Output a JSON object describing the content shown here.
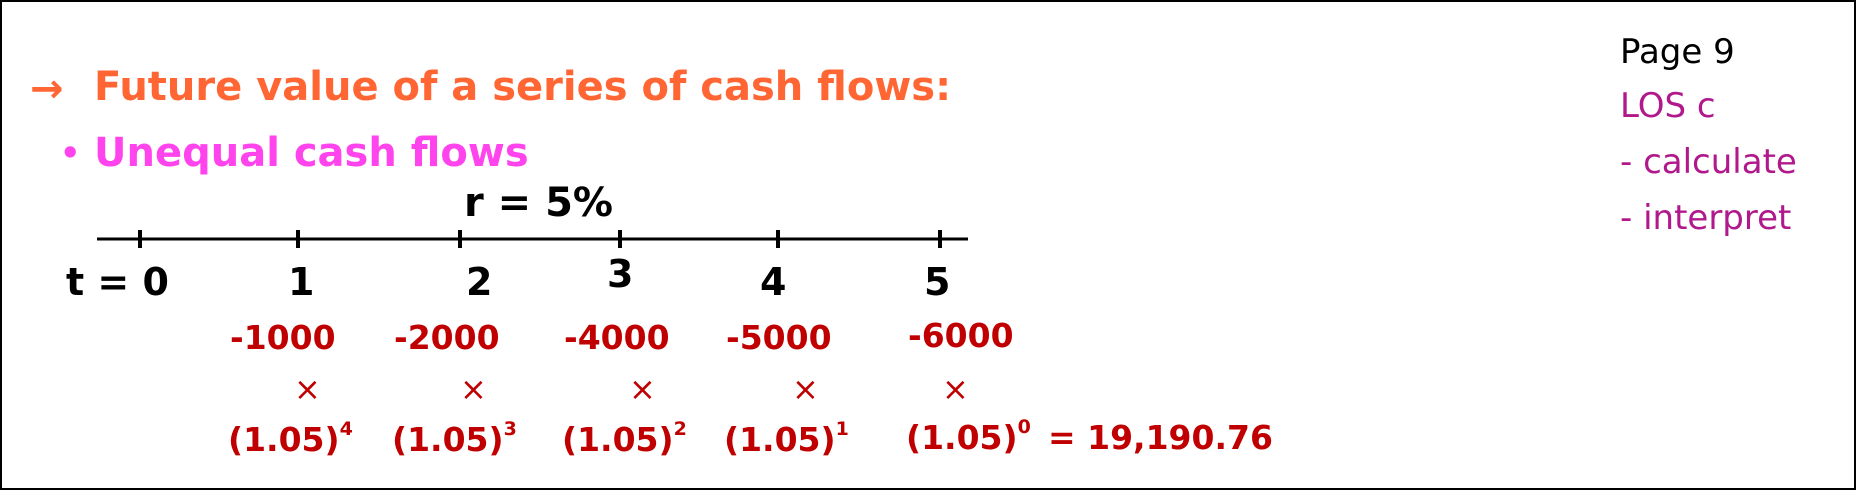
{
  "heading": {
    "arrow": "→",
    "title": "Future value of a series of cash flows:"
  },
  "subheading": {
    "bullet": "•",
    "text": "Unequal cash flows"
  },
  "rate_label": "r = 5%",
  "timeline": {
    "labels": [
      "t = 0",
      "1",
      "2",
      "3",
      "4",
      "5"
    ]
  },
  "cash_flows": {
    "values": [
      "-1000",
      "-2000",
      "-4000",
      "-5000",
      "-6000"
    ],
    "times_symbol": "×",
    "factors": [
      {
        "base": "(1.05)",
        "exp": "4"
      },
      {
        "base": "(1.05)",
        "exp": "3"
      },
      {
        "base": "(1.05)",
        "exp": "2"
      },
      {
        "base": "(1.05)",
        "exp": "1"
      },
      {
        "base": "(1.05)",
        "exp": "0"
      }
    ],
    "result": "= 19,190.76"
  },
  "sidebar": {
    "page": "Page 9",
    "los": "LOS c",
    "items": [
      "- calculate",
      "- interpret"
    ]
  },
  "colors": {
    "heading": "#ff6633",
    "subheading": "#ff44ee",
    "cash_flow": "#c00000",
    "sidebar_accent": "#b0188c"
  }
}
